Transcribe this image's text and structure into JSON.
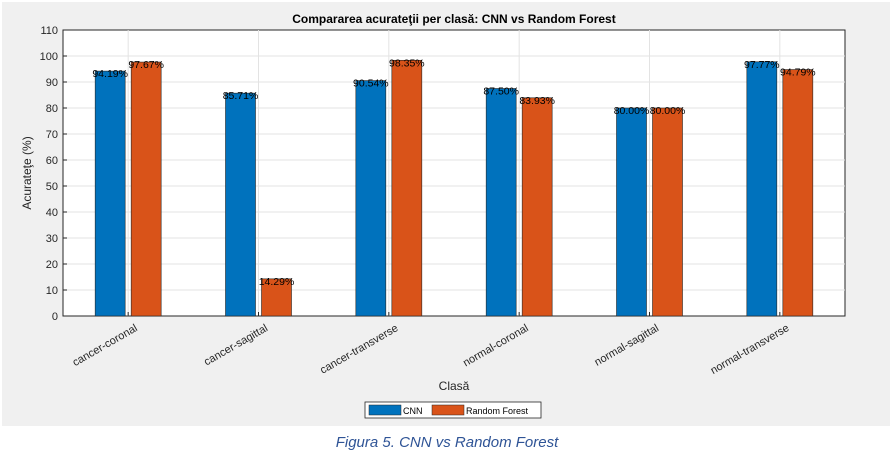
{
  "figure": {
    "caption": "Figura 5. CNN vs Random Forest"
  },
  "chart_data": {
    "type": "bar",
    "title": "Compararea acurateţii per clasă: CNN vs Random Forest",
    "xlabel": "Clasă",
    "ylabel": "Acurateţe (%)",
    "ylim": [
      0,
      110
    ],
    "yticks": [
      0,
      10,
      20,
      30,
      40,
      50,
      60,
      70,
      80,
      90,
      100,
      110
    ],
    "grid": true,
    "legend_position": "bottom-center",
    "categories": [
      "cancer-coronal",
      "cancer-sagittal",
      "cancer-transverse",
      "normal-coronal",
      "normal-sagittal",
      "normal-transverse"
    ],
    "series": [
      {
        "name": "CNN",
        "color": "#0072bd",
        "values": [
          94.19,
          85.71,
          90.54,
          87.5,
          80.0,
          97.77
        ],
        "labels": [
          "94.19%",
          "85.71%",
          "90.54%",
          "87.50%",
          "80.00%",
          "97.77%"
        ]
      },
      {
        "name": "Random Forest",
        "color": "#d95319",
        "values": [
          97.67,
          14.29,
          98.35,
          83.93,
          80.0,
          94.79
        ],
        "labels": [
          "97.67%",
          "14.29%",
          "98.35%",
          "83.93%",
          "80.00%",
          "94.79%"
        ]
      }
    ]
  }
}
